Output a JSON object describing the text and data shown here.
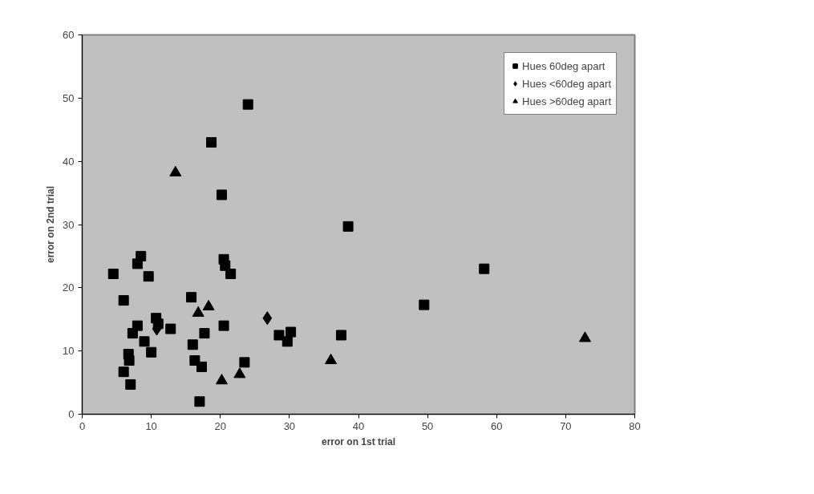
{
  "chart_data": {
    "type": "scatter",
    "xlabel": "error on 1st trial",
    "ylabel": "error on 2nd trial",
    "xlim": [
      0,
      80
    ],
    "ylim": [
      0,
      60
    ],
    "xticks": [
      0,
      10,
      20,
      30,
      40,
      50,
      60,
      70,
      80
    ],
    "yticks": [
      0,
      10,
      20,
      30,
      40,
      50,
      60
    ],
    "grid": false,
    "legend": "top right",
    "series": [
      {
        "name": "Hues 60deg apart",
        "color": "#000000",
        "marker": "square",
        "x": [
          4.5,
          6,
          6,
          6.7,
          6.8,
          7,
          7.3,
          8,
          8,
          8.5,
          9,
          9.6,
          10,
          10.7,
          11,
          12.8,
          15.8,
          16,
          16.3,
          17,
          17.3,
          17.7,
          18.7,
          20.2,
          20.5,
          20.5,
          20.7,
          21.5,
          23.5,
          24,
          28.5,
          29.7,
          30.2,
          37.5,
          38.5,
          49.5,
          58.2
        ],
        "values": [
          22.2,
          18,
          6.7,
          9.5,
          8.5,
          4.7,
          12.8,
          14,
          23.8,
          25,
          11.5,
          21.8,
          9.8,
          15.2,
          14.3,
          13.5,
          18.5,
          11,
          8.5,
          2,
          7.5,
          12.8,
          43,
          34.7,
          24.5,
          14,
          23.5,
          22.2,
          8.2,
          49,
          12.5,
          11.5,
          13,
          12.5,
          29.7,
          17.3,
          23
        ]
      },
      {
        "name": "Hues <60deg apart",
        "color": "#000000",
        "marker": "diamond",
        "x": [
          10.8,
          26.8
        ],
        "values": [
          13.5,
          15.2
        ]
      },
      {
        "name": "Hues >60deg apart",
        "color": "#000000",
        "marker": "triangle",
        "x": [
          13.5,
          16.8,
          18.3,
          20.2,
          22.8,
          36,
          72.8
        ],
        "values": [
          38.2,
          16,
          17,
          5.3,
          6.3,
          8.5,
          12
        ]
      }
    ]
  }
}
